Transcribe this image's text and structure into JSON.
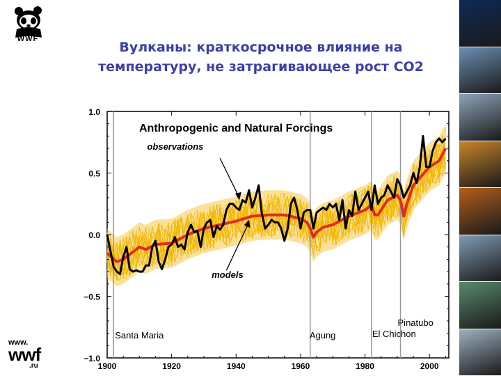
{
  "slide": {
    "title_line1": "Вулканы: краткосрочное влияние на",
    "title_line2": "температуру, не затрагивающее рост СО2",
    "logo_text": "WWF",
    "footer_www": "www.",
    "footer_wwf": "wwf",
    "footer_ru": ".ru"
  },
  "chart_data": {
    "type": "line",
    "title": "Anthropogenic and Natural Forcings",
    "xlabel": "",
    "ylabel": "",
    "xlim": [
      1900,
      2006
    ],
    "ylim": [
      -1.0,
      1.0
    ],
    "x_ticks": [
      "1900",
      "1920",
      "1940",
      "1960",
      "1980",
      "2000"
    ],
    "y_ticks": [
      "1.0",
      "0.5",
      "0.0",
      "−0.5",
      "−1.0"
    ],
    "series": [
      {
        "name": "observations",
        "color": "#000000",
        "points": [
          [
            1900,
            0.0
          ],
          [
            1901,
            -0.13
          ],
          [
            1902,
            -0.26
          ],
          [
            1903,
            -0.3
          ],
          [
            1904,
            -0.32
          ],
          [
            1905,
            -0.18
          ],
          [
            1906,
            -0.1
          ],
          [
            1907,
            -0.28
          ],
          [
            1908,
            -0.3
          ],
          [
            1909,
            -0.29
          ],
          [
            1910,
            -0.3
          ],
          [
            1911,
            -0.3
          ],
          [
            1912,
            -0.25
          ],
          [
            1913,
            -0.25
          ],
          [
            1914,
            -0.1
          ],
          [
            1915,
            -0.05
          ],
          [
            1916,
            -0.22
          ],
          [
            1917,
            -0.28
          ],
          [
            1918,
            -0.2
          ],
          [
            1919,
            -0.1
          ],
          [
            1920,
            -0.08
          ],
          [
            1921,
            -0.02
          ],
          [
            1922,
            -0.1
          ],
          [
            1923,
            -0.08
          ],
          [
            1924,
            -0.12
          ],
          [
            1925,
            0.02
          ],
          [
            1926,
            0.08
          ],
          [
            1927,
            0.02
          ],
          [
            1928,
            0.03
          ],
          [
            1929,
            -0.1
          ],
          [
            1930,
            0.05
          ],
          [
            1931,
            0.1
          ],
          [
            1932,
            0.12
          ],
          [
            1933,
            -0.02
          ],
          [
            1934,
            0.07
          ],
          [
            1935,
            0.04
          ],
          [
            1936,
            0.08
          ],
          [
            1937,
            0.2
          ],
          [
            1938,
            0.25
          ],
          [
            1939,
            0.25
          ],
          [
            1940,
            0.22
          ],
          [
            1941,
            0.2
          ],
          [
            1942,
            0.28
          ],
          [
            1943,
            0.26
          ],
          [
            1944,
            0.36
          ],
          [
            1945,
            0.22
          ],
          [
            1946,
            0.3
          ],
          [
            1947,
            0.4
          ],
          [
            1948,
            0.17
          ],
          [
            1949,
            0.05
          ],
          [
            1950,
            0.08
          ],
          [
            1951,
            0.12
          ],
          [
            1952,
            0.1
          ],
          [
            1953,
            0.1
          ],
          [
            1954,
            0.05
          ],
          [
            1955,
            -0.05
          ],
          [
            1956,
            0.05
          ],
          [
            1957,
            0.25
          ],
          [
            1958,
            0.3
          ],
          [
            1959,
            0.2
          ],
          [
            1960,
            0.05
          ],
          [
            1961,
            0.18
          ],
          [
            1962,
            0.2
          ],
          [
            1963,
            0.2
          ],
          [
            1964,
            0.05
          ],
          [
            1965,
            0.18
          ],
          [
            1966,
            0.2
          ],
          [
            1967,
            0.22
          ],
          [
            1968,
            0.2
          ],
          [
            1969,
            0.25
          ],
          [
            1970,
            0.22
          ],
          [
            1971,
            0.25
          ],
          [
            1972,
            0.12
          ],
          [
            1973,
            0.28
          ],
          [
            1974,
            0.05
          ],
          [
            1975,
            0.2
          ],
          [
            1976,
            0.15
          ],
          [
            1977,
            0.35
          ],
          [
            1978,
            0.2
          ],
          [
            1979,
            0.25
          ],
          [
            1980,
            0.3
          ],
          [
            1981,
            0.35
          ],
          [
            1982,
            0.2
          ],
          [
            1983,
            0.4
          ],
          [
            1984,
            0.25
          ],
          [
            1985,
            0.3
          ],
          [
            1986,
            0.32
          ],
          [
            1987,
            0.4
          ],
          [
            1988,
            0.35
          ],
          [
            1989,
            0.3
          ],
          [
            1990,
            0.45
          ],
          [
            1991,
            0.4
          ],
          [
            1992,
            0.3
          ],
          [
            1993,
            0.35
          ],
          [
            1994,
            0.4
          ],
          [
            1995,
            0.5
          ],
          [
            1996,
            0.42
          ],
          [
            1997,
            0.55
          ],
          [
            1998,
            0.8
          ],
          [
            1999,
            0.55
          ],
          [
            2000,
            0.55
          ],
          [
            2001,
            0.68
          ],
          [
            2002,
            0.75
          ],
          [
            2003,
            0.78
          ],
          [
            2004,
            0.75
          ],
          [
            2005,
            0.78
          ]
        ]
      },
      {
        "name": "models",
        "color": "#e02d1b",
        "points": [
          [
            1900,
            -0.15
          ],
          [
            1903,
            -0.22
          ],
          [
            1905,
            -0.2
          ],
          [
            1908,
            -0.14
          ],
          [
            1910,
            -0.1
          ],
          [
            1912,
            -0.12
          ],
          [
            1915,
            -0.08
          ],
          [
            1920,
            -0.07
          ],
          [
            1925,
            0.0
          ],
          [
            1930,
            0.05
          ],
          [
            1935,
            0.08
          ],
          [
            1940,
            0.11
          ],
          [
            1945,
            0.15
          ],
          [
            1950,
            0.16
          ],
          [
            1955,
            0.16
          ],
          [
            1960,
            0.13
          ],
          [
            1962,
            0.1
          ],
          [
            1963,
            0.05
          ],
          [
            1964,
            -0.02
          ],
          [
            1965,
            0.02
          ],
          [
            1967,
            0.06
          ],
          [
            1970,
            0.08
          ],
          [
            1975,
            0.15
          ],
          [
            1980,
            0.2
          ],
          [
            1982,
            0.24
          ],
          [
            1983,
            0.16
          ],
          [
            1984,
            0.16
          ],
          [
            1987,
            0.28
          ],
          [
            1990,
            0.32
          ],
          [
            1991,
            0.28
          ],
          [
            1992,
            0.15
          ],
          [
            1993,
            0.25
          ],
          [
            1995,
            0.4
          ],
          [
            2000,
            0.55
          ],
          [
            2003,
            0.6
          ],
          [
            2005,
            0.7
          ]
        ]
      }
    ],
    "annotations": [
      {
        "text": "observations",
        "x": 1915,
        "y": 0.69
      },
      {
        "text": "models",
        "x": 1932,
        "y": -0.35
      }
    ],
    "volcanoes": [
      {
        "name": "Santa Maria",
        "year": 1902
      },
      {
        "name": "Agung",
        "year": 1963
      },
      {
        "name": "El Chichon",
        "year": 1982
      },
      {
        "name": "Pinatubo",
        "year": 1991
      }
    ]
  },
  "photos": [
    {
      "name": "space-stars-photo",
      "color": "#0e2a57"
    },
    {
      "name": "wild-dog-photo",
      "color": "#6b8fb3"
    },
    {
      "name": "mountain-photo",
      "color": "#8ea3b8"
    },
    {
      "name": "sunset-grass-photo",
      "color": "#c9852a"
    },
    {
      "name": "tiger-photo",
      "color": "#b35f1c"
    },
    {
      "name": "snowy-forest-photo",
      "color": "#7f9bb4"
    },
    {
      "name": "lake-photo",
      "color": "#5a8a6e"
    },
    {
      "name": "swan-photo",
      "color": "#9fb1c2"
    }
  ]
}
